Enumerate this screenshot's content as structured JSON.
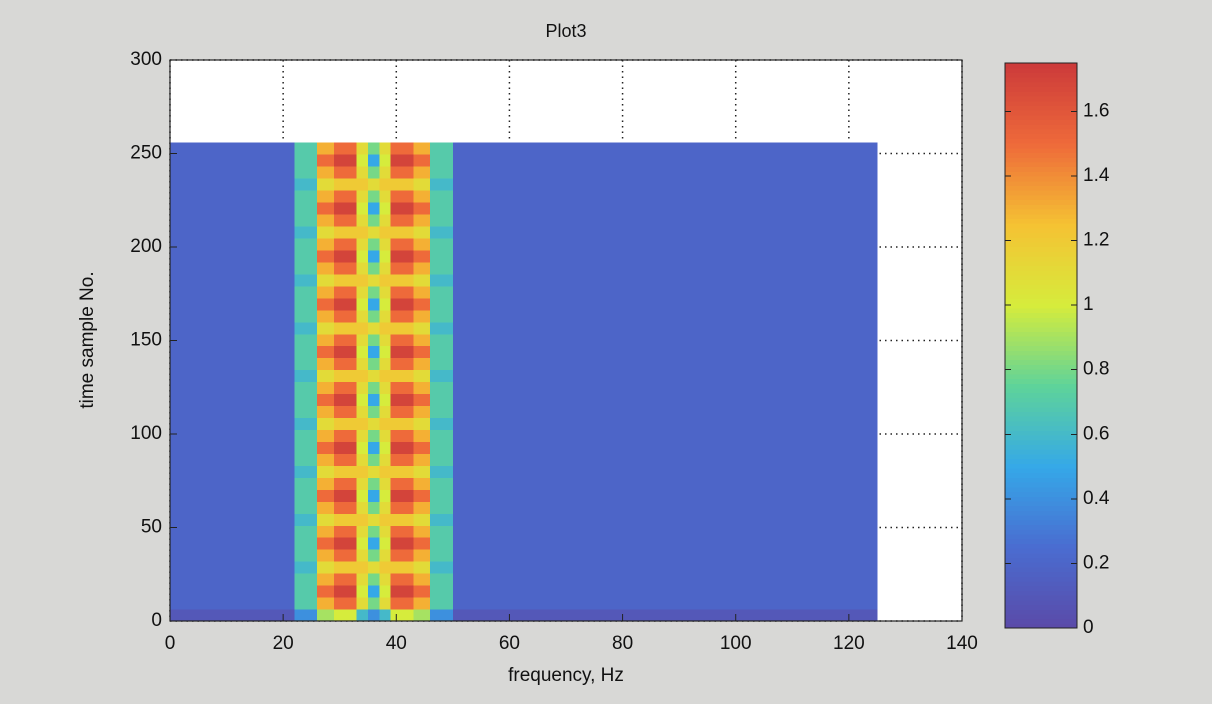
{
  "chart_data": {
    "type": "heatmap",
    "title": "Plot3",
    "x_label": "frequency, Hz",
    "y_label": "time sample No.",
    "xlim": [
      0,
      140
    ],
    "xticks": [
      0,
      20,
      40,
      60,
      80,
      100,
      120,
      140
    ],
    "ylim": [
      0,
      300
    ],
    "yticks": [
      0,
      50,
      100,
      150,
      200,
      250,
      300
    ],
    "grid": true,
    "x_edges": [
      0,
      22,
      26,
      29,
      33,
      35,
      37,
      39,
      43,
      46,
      50,
      125
    ],
    "y_edges": [
      0,
      6.4,
      12.8,
      19.2,
      25.6,
      32,
      38.4,
      44.8,
      51.2,
      57.6,
      64,
      70.4,
      76.8,
      83.2,
      89.6,
      96,
      102.4,
      108.8,
      115.2,
      121.6,
      128,
      134.4,
      140.8,
      147.2,
      153.6,
      160,
      166.4,
      172.8,
      179.2,
      185.6,
      192,
      198.4,
      204.8,
      211.2,
      217.6,
      224,
      230.4,
      236.8,
      243.2,
      249.6,
      256
    ],
    "z": [
      [
        0.1,
        0.4,
        0.9,
        1.0,
        0.6,
        0.4,
        0.6,
        1.0,
        0.9,
        0.4,
        0.1
      ],
      [
        0.2,
        0.7,
        1.3,
        1.5,
        1.1,
        0.8,
        1.1,
        1.5,
        1.3,
        0.7,
        0.2
      ],
      [
        0.2,
        0.7,
        1.5,
        1.7,
        1.0,
        0.5,
        1.0,
        1.7,
        1.5,
        0.7,
        0.2
      ],
      [
        0.2,
        0.7,
        1.3,
        1.5,
        1.1,
        0.8,
        1.1,
        1.5,
        1.3,
        0.7,
        0.2
      ],
      [
        0.2,
        0.6,
        1.1,
        1.2,
        1.2,
        1.1,
        1.2,
        1.2,
        1.1,
        0.6,
        0.2
      ],
      [
        0.2,
        0.7,
        1.3,
        1.5,
        1.1,
        0.8,
        1.1,
        1.5,
        1.3,
        0.7,
        0.2
      ],
      [
        0.2,
        0.7,
        1.5,
        1.7,
        1.0,
        0.5,
        1.0,
        1.7,
        1.5,
        0.7,
        0.2
      ],
      [
        0.2,
        0.7,
        1.3,
        1.5,
        1.1,
        0.8,
        1.1,
        1.5,
        1.3,
        0.7,
        0.2
      ],
      [
        0.2,
        0.6,
        1.1,
        1.2,
        1.2,
        1.1,
        1.2,
        1.2,
        1.1,
        0.6,
        0.2
      ],
      [
        0.2,
        0.7,
        1.3,
        1.5,
        1.1,
        0.8,
        1.1,
        1.5,
        1.3,
        0.7,
        0.2
      ],
      [
        0.2,
        0.7,
        1.5,
        1.7,
        1.0,
        0.5,
        1.0,
        1.7,
        1.5,
        0.7,
        0.2
      ],
      [
        0.2,
        0.7,
        1.3,
        1.5,
        1.1,
        0.8,
        1.1,
        1.5,
        1.3,
        0.7,
        0.2
      ],
      [
        0.2,
        0.6,
        1.1,
        1.2,
        1.2,
        1.1,
        1.2,
        1.2,
        1.1,
        0.6,
        0.2
      ],
      [
        0.2,
        0.7,
        1.3,
        1.5,
        1.1,
        0.8,
        1.1,
        1.5,
        1.3,
        0.7,
        0.2
      ],
      [
        0.2,
        0.7,
        1.5,
        1.7,
        1.0,
        0.5,
        1.0,
        1.7,
        1.5,
        0.7,
        0.2
      ],
      [
        0.2,
        0.7,
        1.3,
        1.5,
        1.1,
        0.8,
        1.1,
        1.5,
        1.3,
        0.7,
        0.2
      ],
      [
        0.2,
        0.6,
        1.1,
        1.2,
        1.2,
        1.1,
        1.2,
        1.2,
        1.1,
        0.6,
        0.2
      ],
      [
        0.2,
        0.7,
        1.3,
        1.5,
        1.1,
        0.8,
        1.1,
        1.5,
        1.3,
        0.7,
        0.2
      ],
      [
        0.2,
        0.7,
        1.5,
        1.7,
        1.0,
        0.5,
        1.0,
        1.7,
        1.5,
        0.7,
        0.2
      ],
      [
        0.2,
        0.7,
        1.3,
        1.5,
        1.1,
        0.8,
        1.1,
        1.5,
        1.3,
        0.7,
        0.2
      ],
      [
        0.2,
        0.6,
        1.1,
        1.2,
        1.2,
        1.1,
        1.2,
        1.2,
        1.1,
        0.6,
        0.2
      ],
      [
        0.2,
        0.7,
        1.3,
        1.5,
        1.1,
        0.8,
        1.1,
        1.5,
        1.3,
        0.7,
        0.2
      ],
      [
        0.2,
        0.7,
        1.5,
        1.7,
        1.0,
        0.5,
        1.0,
        1.7,
        1.5,
        0.7,
        0.2
      ],
      [
        0.2,
        0.7,
        1.3,
        1.5,
        1.1,
        0.8,
        1.1,
        1.5,
        1.3,
        0.7,
        0.2
      ],
      [
        0.2,
        0.6,
        1.1,
        1.2,
        1.2,
        1.1,
        1.2,
        1.2,
        1.1,
        0.6,
        0.2
      ],
      [
        0.2,
        0.7,
        1.3,
        1.5,
        1.1,
        0.8,
        1.1,
        1.5,
        1.3,
        0.7,
        0.2
      ],
      [
        0.2,
        0.7,
        1.5,
        1.7,
        1.0,
        0.5,
        1.0,
        1.7,
        1.5,
        0.7,
        0.2
      ],
      [
        0.2,
        0.7,
        1.3,
        1.5,
        1.1,
        0.8,
        1.1,
        1.5,
        1.3,
        0.7,
        0.2
      ],
      [
        0.2,
        0.6,
        1.1,
        1.2,
        1.2,
        1.1,
        1.2,
        1.2,
        1.1,
        0.6,
        0.2
      ],
      [
        0.2,
        0.7,
        1.3,
        1.5,
        1.1,
        0.8,
        1.1,
        1.5,
        1.3,
        0.7,
        0.2
      ],
      [
        0.2,
        0.7,
        1.5,
        1.7,
        1.0,
        0.5,
        1.0,
        1.7,
        1.5,
        0.7,
        0.2
      ],
      [
        0.2,
        0.7,
        1.3,
        1.5,
        1.1,
        0.8,
        1.1,
        1.5,
        1.3,
        0.7,
        0.2
      ],
      [
        0.2,
        0.6,
        1.1,
        1.2,
        1.2,
        1.1,
        1.2,
        1.2,
        1.1,
        0.6,
        0.2
      ],
      [
        0.2,
        0.7,
        1.3,
        1.5,
        1.1,
        0.8,
        1.1,
        1.5,
        1.3,
        0.7,
        0.2
      ],
      [
        0.2,
        0.7,
        1.5,
        1.7,
        1.0,
        0.5,
        1.0,
        1.7,
        1.5,
        0.7,
        0.2
      ],
      [
        0.2,
        0.7,
        1.3,
        1.5,
        1.1,
        0.8,
        1.1,
        1.5,
        1.3,
        0.7,
        0.2
      ],
      [
        0.2,
        0.6,
        1.1,
        1.2,
        1.2,
        1.1,
        1.2,
        1.2,
        1.1,
        0.6,
        0.2
      ],
      [
        0.2,
        0.7,
        1.3,
        1.5,
        1.1,
        0.8,
        1.1,
        1.5,
        1.3,
        0.7,
        0.2
      ],
      [
        0.2,
        0.7,
        1.5,
        1.7,
        1.0,
        0.5,
        1.0,
        1.7,
        1.5,
        0.7,
        0.2
      ],
      [
        0.2,
        0.7,
        1.3,
        1.5,
        1.1,
        0.8,
        1.1,
        1.5,
        1.3,
        0.7,
        0.2
      ]
    ],
    "clim": [
      0,
      1.75
    ],
    "cticks": [
      0,
      0.2,
      0.4,
      0.6,
      0.8,
      1,
      1.2,
      1.4,
      1.6
    ],
    "colormap": [
      "#5a4aa8",
      "#4a6cd0",
      "#35a8e8",
      "#5ed39a",
      "#d6ec3c",
      "#f5c233",
      "#ee6a3a",
      "#cc3a3a"
    ]
  }
}
